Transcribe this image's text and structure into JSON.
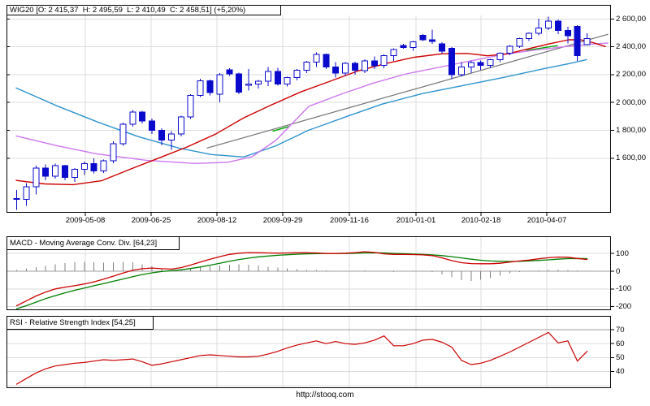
{
  "footer": {
    "url": "http://stooq.com"
  },
  "chart_data": {
    "type": "candlestick",
    "symbol": "WIG20",
    "title": "WIG20 [O: 2 415,37  H: 2 495,59  L: 2 410,49  C: 2 458,51] (+5,20%)",
    "ohlc_display": {
      "open": "2 415,37",
      "high": "2 495,59",
      "low": "2 410,49",
      "close": "2 458,51",
      "change_pct": "+5,20%"
    },
    "x_tick_labels": [
      "2009-05-08",
      "2009-06-25",
      "2009-08-12",
      "2009-09-29",
      "2009-11-16",
      "2010-01-01",
      "2010-02-18",
      "2010-04-07"
    ],
    "y_axis": {
      "tick_labels": [
        "2 600,00",
        "2 400,00",
        "2 200,00",
        "2 000,00",
        "1 800,00",
        "1 600,00"
      ],
      "tick_values": [
        2600,
        2400,
        2200,
        2000,
        1800,
        1600
      ]
    },
    "candles": [
      [
        1310,
        1370,
        1230,
        1305
      ],
      [
        1305,
        1420,
        1258,
        1395
      ],
      [
        1395,
        1545,
        1340,
        1530
      ],
      [
        1530,
        1555,
        1440,
        1470
      ],
      [
        1470,
        1560,
        1452,
        1545
      ],
      [
        1545,
        1552,
        1440,
        1462
      ],
      [
        1462,
        1530,
        1430,
        1520
      ],
      [
        1520,
        1575,
        1480,
        1560
      ],
      [
        1560,
        1600,
        1490,
        1508
      ],
      [
        1508,
        1590,
        1495,
        1580
      ],
      [
        1580,
        1720,
        1565,
        1705
      ],
      [
        1705,
        1855,
        1690,
        1845
      ],
      [
        1845,
        1945,
        1825,
        1932
      ],
      [
        1932,
        1940,
        1850,
        1868
      ],
      [
        1868,
        1885,
        1775,
        1800
      ],
      [
        1800,
        1815,
        1692,
        1730
      ],
      [
        1730,
        1795,
        1660,
        1775
      ],
      [
        1775,
        1905,
        1755,
        1895
      ],
      [
        1895,
        2060,
        1882,
        2050
      ],
      [
        2050,
        2170,
        2040,
        2155
      ],
      [
        2155,
        2165,
        2050,
        2072
      ],
      [
        2060,
        2210,
        2000,
        2200
      ],
      [
        2235,
        2245,
        2190,
        2206
      ],
      [
        2206,
        2215,
        2060,
        2075
      ],
      [
        2125,
        2240,
        2085,
        2132
      ],
      [
        2132,
        2162,
        2100,
        2152
      ],
      [
        2152,
        2255,
        2118,
        2224
      ],
      [
        2224,
        2250,
        2120,
        2132
      ],
      [
        2132,
        2185,
        2115,
        2178
      ],
      [
        2178,
        2240,
        2160,
        2232
      ],
      [
        2232,
        2298,
        2210,
        2290
      ],
      [
        2290,
        2360,
        2255,
        2345
      ],
      [
        2345,
        2352,
        2240,
        2255
      ],
      [
        2255,
        2290,
        2180,
        2210
      ],
      [
        2210,
        2290,
        2190,
        2282
      ],
      [
        2282,
        2292,
        2200,
        2230
      ],
      [
        2230,
        2310,
        2210,
        2300
      ],
      [
        2300,
        2330,
        2240,
        2265
      ],
      [
        2265,
        2345,
        2245,
        2335
      ],
      [
        2335,
        2390,
        2300,
        2380
      ],
      [
        2410,
        2422,
        2385,
        2395
      ],
      [
        2395,
        2440,
        2372,
        2435
      ],
      [
        2482,
        2492,
        2440,
        2450
      ],
      [
        2450,
        2522,
        2420,
        2438
      ],
      [
        2420,
        2432,
        2350,
        2370
      ],
      [
        2390,
        2398,
        2168,
        2200
      ],
      [
        2200,
        2290,
        2188,
        2255
      ],
      [
        2255,
        2300,
        2215,
        2288
      ],
      [
        2288,
        2302,
        2235,
        2267
      ],
      [
        2267,
        2312,
        2245,
        2307
      ],
      [
        2307,
        2360,
        2290,
        2355
      ],
      [
        2355,
        2412,
        2340,
        2403
      ],
      [
        2403,
        2465,
        2392,
        2458
      ],
      [
        2458,
        2502,
        2440,
        2497
      ],
      [
        2497,
        2602,
        2482,
        2536
      ],
      [
        2536,
        2615,
        2520,
        2585
      ],
      [
        2585,
        2596,
        2492,
        2518
      ],
      [
        2518,
        2542,
        2424,
        2480
      ],
      [
        2545,
        2556,
        2300,
        2337
      ],
      [
        2415.37,
        2495.59,
        2410.49,
        2458.51
      ]
    ],
    "overlays": {
      "ma_red": [
        [
          20,
          1440
        ],
        [
          55,
          1415
        ],
        [
          90,
          1410
        ],
        [
          125,
          1438
        ],
        [
          160,
          1520
        ],
        [
          195,
          1600
        ],
        [
          230,
          1680
        ],
        [
          265,
          1772
        ],
        [
          300,
          1890
        ],
        [
          335,
          1985
        ],
        [
          370,
          2075
        ],
        [
          405,
          2150
        ],
        [
          440,
          2225
        ],
        [
          475,
          2280
        ],
        [
          510,
          2325
        ],
        [
          545,
          2350
        ],
        [
          575,
          2352
        ],
        [
          600,
          2335
        ],
        [
          625,
          2350
        ],
        [
          650,
          2385
        ],
        [
          675,
          2420
        ],
        [
          700,
          2450
        ],
        [
          715,
          2450
        ],
        [
          730,
          2430
        ],
        [
          745,
          2402
        ]
      ],
      "ma_violet": [
        [
          20,
          1760
        ],
        [
          70,
          1690
        ],
        [
          120,
          1630
        ],
        [
          180,
          1585
        ],
        [
          240,
          1562
        ],
        [
          280,
          1570
        ],
        [
          310,
          1610
        ],
        [
          340,
          1730
        ],
        [
          380,
          1972
        ],
        [
          420,
          2060
        ],
        [
          460,
          2140
        ],
        [
          500,
          2205
        ],
        [
          540,
          2252
        ],
        [
          580,
          2300
        ],
        [
          620,
          2345
        ],
        [
          660,
          2378
        ],
        [
          700,
          2404
        ],
        [
          730,
          2420
        ],
        [
          748,
          2426
        ]
      ],
      "ma_blue": [
        [
          20,
          2104
        ],
        [
          70,
          1976
        ],
        [
          120,
          1860
        ],
        [
          170,
          1755
        ],
        [
          220,
          1673
        ],
        [
          260,
          1626
        ],
        [
          300,
          1609
        ],
        [
          340,
          1690
        ],
        [
          380,
          1801
        ],
        [
          430,
          1906
        ],
        [
          470,
          1988
        ],
        [
          520,
          2064
        ],
        [
          570,
          2122
        ],
        [
          620,
          2180
        ],
        [
          670,
          2244
        ],
        [
          700,
          2279
        ],
        [
          722,
          2308
        ]
      ],
      "trendline": [
        [
          255,
          1673
        ],
        [
          748,
          2489
        ]
      ],
      "green_segments": [
        [
          [
            336,
            1795
          ],
          [
            356,
            1828
          ]
        ],
        [
          [
            648,
            2374
          ],
          [
            686,
            2408
          ]
        ]
      ]
    },
    "macd": {
      "title": "MACD - Moving Average Conv. Div. [64,23]",
      "tick_labels": [
        "100",
        "0",
        "-100",
        "-200"
      ],
      "tick_values": [
        100,
        0,
        -100,
        -200
      ],
      "line": [
        -195,
        -168,
        -140,
        -118,
        -100,
        -90,
        -82,
        -72,
        -60,
        -45,
        -28,
        -10,
        5,
        14,
        18,
        14,
        12,
        20,
        35,
        52,
        68,
        82,
        95,
        102,
        105,
        104,
        103,
        102,
        103,
        104,
        104,
        103,
        100,
        100,
        102,
        105,
        110,
        106,
        98,
        95,
        95,
        94,
        92,
        88,
        75,
        60,
        48,
        43,
        42,
        42,
        45,
        52,
        58,
        63,
        70,
        76,
        80,
        79,
        72,
        66
      ],
      "signal": [
        -212,
        -195,
        -175,
        -155,
        -138,
        -122,
        -108,
        -95,
        -82,
        -70,
        -57,
        -44,
        -31,
        -19,
        -9,
        -2,
        3,
        8,
        15,
        24,
        34,
        45,
        56,
        66,
        74,
        81,
        86,
        90,
        93,
        96,
        98,
        99,
        100,
        100,
        100,
        101,
        103,
        104,
        103,
        101,
        99,
        97,
        95,
        92,
        88,
        82,
        75,
        68,
        62,
        58,
        56,
        55,
        56,
        58,
        61,
        64,
        68,
        71,
        72,
        71
      ],
      "histogram": [
        8,
        15,
        22,
        30,
        38,
        45,
        50,
        52,
        50,
        48,
        50,
        52,
        50,
        40,
        28,
        14,
        8,
        10,
        16,
        22,
        28,
        33,
        37,
        38,
        36,
        32,
        26,
        20,
        15,
        11,
        8,
        6,
        4,
        2,
        2,
        3,
        5,
        3,
        -2,
        -4,
        -3,
        -2,
        -2,
        -5,
        -18,
        -35,
        -50,
        -55,
        -48,
        -38,
        -25,
        -12,
        -4,
        2,
        5,
        8,
        10,
        8,
        4,
        2
      ]
    },
    "rsi": {
      "title": "RSI - Relative Strength Index [54,25]",
      "tick_labels": [
        "70",
        "60",
        "50",
        "40"
      ],
      "tick_values": [
        70,
        60,
        50,
        40
      ],
      "values": [
        31,
        35,
        39,
        42,
        44,
        45,
        46,
        46.5,
        47.5,
        48.5,
        48,
        48.5,
        49,
        47,
        44.5,
        45.5,
        47,
        48.5,
        50,
        51.5,
        52,
        51.5,
        51,
        50.5,
        50.5,
        51,
        52.5,
        54.5,
        57,
        59,
        60.5,
        62,
        60,
        61.5,
        60,
        59.5,
        60.5,
        62.5,
        65.5,
        58.5,
        58.5,
        60,
        62.5,
        63,
        61,
        57.5,
        48,
        45,
        46,
        48,
        51,
        54,
        57.5,
        61,
        64.5,
        68,
        60.5,
        62,
        47.5,
        54.5
      ]
    },
    "colors": {
      "candle": "#0A0ACD",
      "up_fill": "#FFFFFF",
      "ma_red": "#CE0000",
      "ma_violet": "#CC77EE",
      "ma_blue": "#2D93CE",
      "trendline": "#737373",
      "green": "#00AA00",
      "macd_line": "#CC0000",
      "macd_signal": "#007F00",
      "histogram": "#808080",
      "rsi_line": "#CC0000",
      "grid": "#DCDCDC",
      "grid_dark": "#9E9E9E",
      "border": "#000000"
    }
  }
}
